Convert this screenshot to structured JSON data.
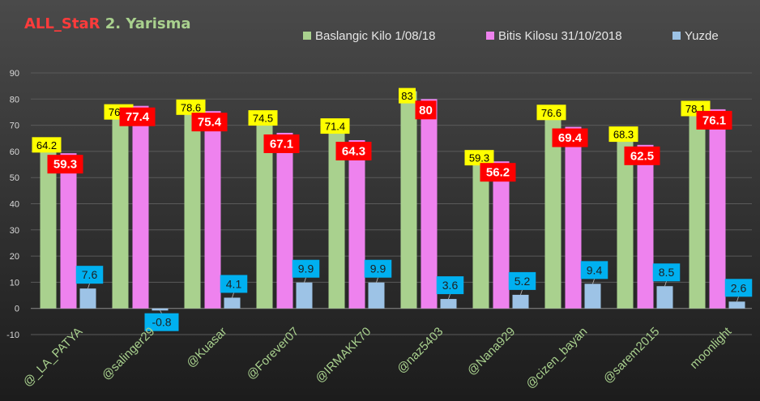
{
  "chart_data": {
    "type": "bar",
    "title": "ALL_StaR 2. Yarisma",
    "categories": [
      "@_LA_PATYA",
      "@salinger29",
      "@Kuasar",
      "@Forever07",
      "@IRMAKK70",
      "@naz5403",
      "@Nana929",
      "@cizen_bayan",
      "@sarem2015",
      "moonlight"
    ],
    "series": [
      {
        "name": "Baslangic Kilo 1/08/18",
        "values": [
          64.2,
          76.8,
          78.6,
          74.5,
          71.4,
          83,
          59.3,
          76.6,
          68.3,
          78.1
        ]
      },
      {
        "name": "Bitis Kilosu 31/10/2018",
        "values": [
          59.3,
          77.4,
          75.4,
          67.1,
          64.3,
          80,
          56.2,
          69.4,
          62.5,
          76.1
        ]
      },
      {
        "name": "Yuzde",
        "values": [
          7.6,
          -0.8,
          4.1,
          9.9,
          9.9,
          3.6,
          5.2,
          9.4,
          8.5,
          2.6
        ]
      }
    ],
    "ylim": [
      -10,
      90
    ],
    "yticks": [
      -10,
      0,
      10,
      20,
      30,
      40,
      50,
      60,
      70,
      80,
      90
    ],
    "legend_position": "top-right",
    "grid": true,
    "colors": {
      "series": [
        "#a9d18e",
        "#ee82ee",
        "#9dc3e6"
      ],
      "label_bg": [
        "#ffff00",
        "#ff0000",
        "#00b0f0"
      ],
      "title_red": "#ff3b3b",
      "title_green": "#a9d18e"
    }
  }
}
